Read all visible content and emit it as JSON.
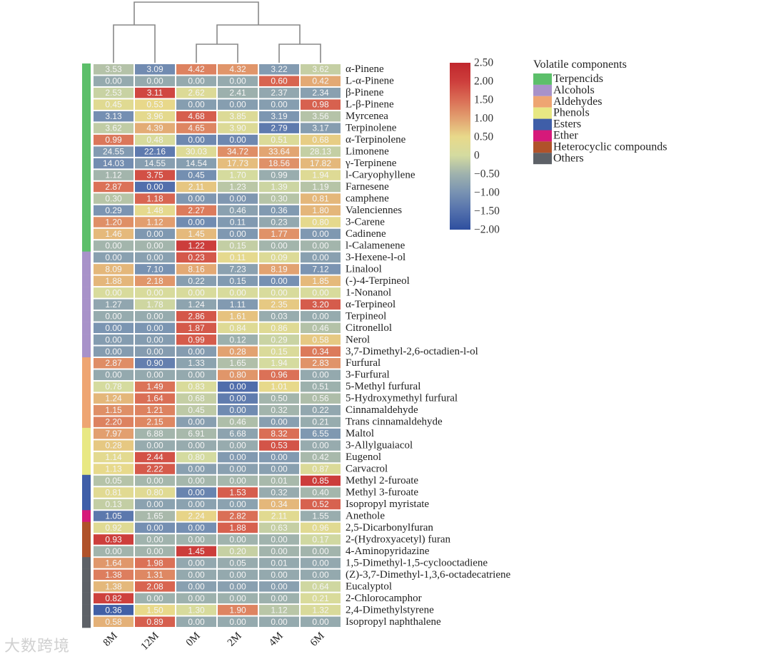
{
  "chart_data": {
    "type": "heatmap",
    "title": "",
    "columns": [
      "8M",
      "12M",
      "0M",
      "2M",
      "4M",
      "6M"
    ],
    "rows": [
      {
        "name": "α-Pinene",
        "group": 0,
        "values": [
          3.53,
          3.09,
          4.42,
          4.32,
          3.22,
          3.62
        ]
      },
      {
        "name": "L-α-Pinene",
        "group": 0,
        "values": [
          0.0,
          0.0,
          0.0,
          0.0,
          0.6,
          0.42
        ]
      },
      {
        "name": "β-Pinene",
        "group": 0,
        "values": [
          2.53,
          3.11,
          2.62,
          2.41,
          2.37,
          2.34
        ]
      },
      {
        "name": "L-β-Pinene",
        "group": 0,
        "values": [
          0.45,
          0.53,
          0.0,
          0.0,
          0.0,
          0.98
        ]
      },
      {
        "name": "Myrcenea",
        "group": 0,
        "values": [
          3.13,
          3.96,
          4.68,
          3.85,
          3.19,
          3.56
        ]
      },
      {
        "name": "Terpinolene",
        "group": 0,
        "values": [
          3.62,
          4.39,
          4.65,
          3.9,
          2.79,
          3.17
        ]
      },
      {
        "name": "α-Terpinolene",
        "group": 0,
        "values": [
          0.99,
          0.48,
          0.0,
          0.0,
          0.51,
          0.68
        ]
      },
      {
        "name": "Limonene",
        "group": 0,
        "values": [
          24.55,
          22.16,
          30.03,
          34.72,
          33.64,
          28.13
        ]
      },
      {
        "name": "γ-Terpinene",
        "group": 0,
        "values": [
          14.03,
          14.55,
          14.54,
          17.73,
          18.56,
          17.82
        ]
      },
      {
        "name": "l-Caryophyllene",
        "group": 0,
        "values": [
          1.12,
          3.75,
          0.45,
          1.7,
          0.99,
          1.94
        ]
      },
      {
        "name": "Farnesene",
        "group": 0,
        "values": [
          2.87,
          0.0,
          2.11,
          1.23,
          1.39,
          1.19
        ]
      },
      {
        "name": "camphene",
        "group": 0,
        "values": [
          0.3,
          1.18,
          0.0,
          0.0,
          0.3,
          0.81
        ]
      },
      {
        "name": "Valenciennes",
        "group": 0,
        "values": [
          0.29,
          1.48,
          2.27,
          0.46,
          0.36,
          1.8
        ]
      },
      {
        "name": "3-Carene",
        "group": 0,
        "values": [
          1.2,
          1.12,
          0.0,
          0.11,
          0.23,
          0.8
        ]
      },
      {
        "name": "Cadinene",
        "group": 0,
        "values": [
          1.46,
          0.0,
          1.45,
          0.0,
          1.77,
          0.0
        ]
      },
      {
        "name": "l-Calamenene",
        "group": 0,
        "values": [
          0.0,
          0.0,
          1.22,
          0.15,
          0.0,
          0.0
        ]
      },
      {
        "name": "3-Hexene-l-ol",
        "group": 1,
        "values": [
          0.0,
          0.0,
          0.23,
          0.11,
          0.09,
          0.0
        ]
      },
      {
        "name": "Linalool",
        "group": 1,
        "values": [
          8.09,
          7.1,
          8.16,
          7.23,
          8.19,
          7.12
        ]
      },
      {
        "name": "(-)-4-Terpineol",
        "group": 1,
        "values": [
          1.88,
          2.18,
          0.22,
          0.15,
          0.0,
          1.85
        ]
      },
      {
        "name": "1-Nonanol",
        "group": 1,
        "values": [
          0.0,
          0.0,
          0.0,
          0.0,
          0.0,
          0.0
        ]
      },
      {
        "name": "α-Terpineol",
        "group": 1,
        "values": [
          1.27,
          1.78,
          1.24,
          1.11,
          2.35,
          3.2
        ]
      },
      {
        "name": "Terpineol",
        "group": 1,
        "values": [
          0.0,
          0.0,
          2.86,
          1.61,
          0.03,
          0.0
        ]
      },
      {
        "name": "Citronellol",
        "group": 1,
        "values": [
          0.0,
          0.0,
          1.87,
          0.84,
          0.86,
          0.46
        ]
      },
      {
        "name": "Nerol",
        "group": 1,
        "values": [
          0.0,
          0.0,
          0.99,
          0.12,
          0.29,
          0.58
        ]
      },
      {
        "name": "3,7-Dimethyl-2,6-octadien-l-ol",
        "group": 1,
        "values": [
          0.0,
          0.0,
          0.0,
          0.28,
          0.15,
          0.34
        ]
      },
      {
        "name": "Furfural",
        "group": 2,
        "values": [
          2.87,
          0.9,
          1.33,
          1.65,
          1.94,
          2.83
        ]
      },
      {
        "name": "3-Furfural",
        "group": 2,
        "values": [
          0.0,
          0.0,
          0.0,
          0.8,
          0.96,
          0.0
        ]
      },
      {
        "name": "5-Methyl furfural",
        "group": 2,
        "values": [
          0.78,
          1.49,
          0.83,
          0.0,
          1.01,
          0.51
        ]
      },
      {
        "name": "5-Hydroxymethyl furfural",
        "group": 2,
        "values": [
          1.24,
          1.64,
          0.68,
          0.0,
          0.5,
          0.56
        ]
      },
      {
        "name": "Cinnamaldehyde",
        "group": 2,
        "values": [
          1.15,
          1.21,
          0.45,
          0.0,
          0.32,
          0.22
        ]
      },
      {
        "name": "Trans cinnamaldehyde",
        "group": 2,
        "values": [
          2.2,
          2.15,
          0.0,
          0.46,
          0.0,
          0.21
        ]
      },
      {
        "name": "Maltol",
        "group": 3,
        "values": [
          7.97,
          6.88,
          6.91,
          6.68,
          8.32,
          6.55
        ]
      },
      {
        "name": "3-Allylguaiacol",
        "group": 3,
        "values": [
          0.28,
          0.0,
          0.0,
          0.0,
          0.53,
          0.0
        ]
      },
      {
        "name": "Eugenol",
        "group": 3,
        "values": [
          1.14,
          2.44,
          0.8,
          0.0,
          0.0,
          0.42
        ]
      },
      {
        "name": "Carvacrol",
        "group": 3,
        "values": [
          1.13,
          2.22,
          0.0,
          0.0,
          0.0,
          0.87
        ]
      },
      {
        "name": "Methyl 2-furoate",
        "group": 4,
        "values": [
          0.05,
          0.0,
          0.0,
          0.0,
          0.01,
          0.85
        ]
      },
      {
        "name": "Methyl 3-furoate",
        "group": 4,
        "values": [
          0.81,
          0.8,
          0.0,
          1.53,
          0.32,
          0.4
        ]
      },
      {
        "name": "Isopropyl myristate",
        "group": 4,
        "values": [
          0.13,
          0.0,
          0.0,
          0.0,
          0.34,
          0.52
        ]
      },
      {
        "name": "Anethole",
        "group": 5,
        "values": [
          1.05,
          1.65,
          2.24,
          2.82,
          2.11,
          1.55
        ]
      },
      {
        "name": "2,5-Dicarbonylfuran",
        "group": 6,
        "values": [
          0.92,
          0.0,
          0.0,
          1.88,
          0.63,
          0.96
        ]
      },
      {
        "name": "2-(Hydroxyacetyl) furan",
        "group": 6,
        "values": [
          0.93,
          0.0,
          0.0,
          0.0,
          0.0,
          0.17
        ]
      },
      {
        "name": "4-Aminopyridazine",
        "group": 6,
        "values": [
          0.0,
          0.0,
          1.45,
          0.2,
          0.0,
          0.0
        ]
      },
      {
        "name": "1,5-Dimethyl-1,5-cyclooctadiene",
        "group": 7,
        "values": [
          1.64,
          1.98,
          0.0,
          0.05,
          0.01,
          0.0
        ]
      },
      {
        "name": "(Z)-3,7-Dimethyl-1,3,6-octadecatriene",
        "group": 7,
        "values": [
          1.38,
          1.31,
          0.0,
          0.0,
          0.0,
          0.0
        ]
      },
      {
        "name": "Eucalyptol",
        "group": 7,
        "values": [
          1.38,
          2.08,
          0.0,
          0.0,
          0.0,
          0.64
        ]
      },
      {
        "name": "2-Chlorocamphor",
        "group": 7,
        "values": [
          0.82,
          0.0,
          0.0,
          0.0,
          0.0,
          0.21
        ]
      },
      {
        "name": "2,4-Dimethylstyrene",
        "group": 7,
        "values": [
          0.36,
          1.5,
          1.3,
          1.9,
          1.12,
          1.32
        ]
      },
      {
        "name": "Isopropyl naphthalene",
        "group": 7,
        "values": [
          0.58,
          0.89,
          0.0,
          0.0,
          0.0,
          0.0
        ]
      }
    ],
    "groups": [
      {
        "name": "Terpencids",
        "color": "#5cbf6a"
      },
      {
        "name": "Alcohols",
        "color": "#a892c9"
      },
      {
        "name": "Aldehydes",
        "color": "#eea572"
      },
      {
        "name": "Phenols",
        "color": "#e8e883"
      },
      {
        "name": "Esters",
        "color": "#3f5ea8"
      },
      {
        "name": "Ether",
        "color": "#d6197a"
      },
      {
        "name": "Heterocyclic compounds",
        "color": "#b0522a"
      },
      {
        "name": "Others",
        "color": "#5d6167"
      }
    ],
    "legend_title": "Volatile components",
    "colorbar": {
      "ticks": [
        "2.50",
        "2.00",
        "1.50",
        "1.00",
        "0.50",
        "0",
        "−0.50",
        "−1.00",
        "−1.50",
        "−2.00"
      ],
      "range": [
        -2.0,
        2.5
      ],
      "stops": [
        {
          "v": -2.0,
          "c": "#2e4f9f"
        },
        {
          "v": -1.5,
          "c": "#5370ac"
        },
        {
          "v": -1.0,
          "c": "#7892b2"
        },
        {
          "v": -0.5,
          "c": "#9fb2ad"
        },
        {
          "v": 0.0,
          "c": "#d4dba0"
        },
        {
          "v": 0.5,
          "c": "#e8d98a"
        },
        {
          "v": 1.0,
          "c": "#e2a170"
        },
        {
          "v": 1.5,
          "c": "#da6d55"
        },
        {
          "v": 2.0,
          "c": "#cd3e3c"
        },
        {
          "v": 2.5,
          "c": "#c0272d"
        }
      ]
    },
    "dendrogram": "((8M,12M),((0M,2M),(4M,6M)))",
    "scale": "row z-score"
  },
  "watermark": "大数跨境"
}
